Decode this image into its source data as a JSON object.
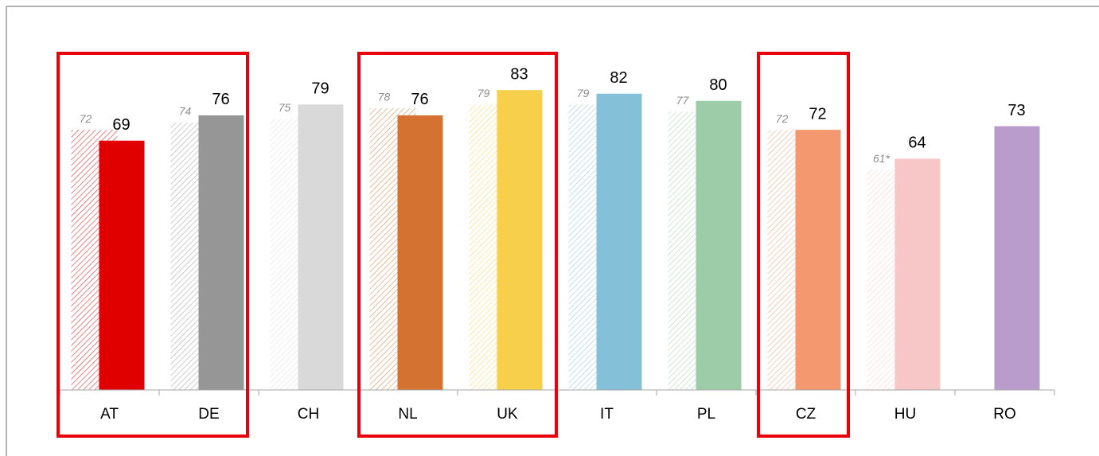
{
  "chart_data": {
    "type": "bar",
    "categories": [
      "AT",
      "DE",
      "CH",
      "NL",
      "UK",
      "IT",
      "PL",
      "CZ",
      "HU",
      "RO"
    ],
    "colors": [
      "#e00000",
      "#969696",
      "#d9d9d9",
      "#d47331",
      "#f7cf4a",
      "#84c0d8",
      "#9ccda8",
      "#f4986f",
      "#f7c6c6",
      "#b99ccb"
    ],
    "series": [
      {
        "values": [
          72,
          74,
          75,
          78,
          79,
          79,
          77,
          72,
          61,
          null
        ],
        "value_labels": [
          "72",
          "74",
          "75",
          "78",
          "79",
          "79",
          "77",
          "72",
          "61*",
          null
        ]
      },
      {
        "values": [
          69,
          76,
          79,
          76,
          83,
          82,
          80,
          72,
          64,
          73
        ]
      }
    ],
    "ylim": [
      0,
      100
    ]
  }
}
